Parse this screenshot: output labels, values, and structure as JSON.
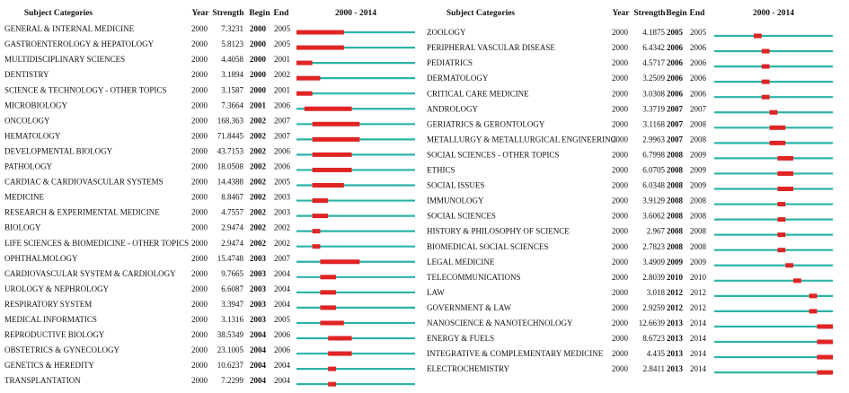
{
  "panels": [
    {
      "header": {
        "category": "Subject Categories",
        "year": "Year",
        "strength": "Strength",
        "begin": "Begin",
        "end": "End",
        "timeline": "2000 - 2014"
      },
      "xlim": [
        2000,
        2014
      ],
      "rows": [
        [
          "GENERAL & INTERNAL MEDICINE",
          2000,
          7.3231,
          2000,
          2005
        ],
        [
          "GASTROENTEROLOGY & HEPATOLOGY",
          2000,
          5.8123,
          2000,
          2005
        ],
        [
          "MULTIDISCIPLINARY SCIENCES",
          2000,
          4.4058,
          2000,
          2001
        ],
        [
          "DENTISTRY",
          2000,
          3.1894,
          2000,
          2002
        ],
        [
          "SCIENCE & TECHNOLOGY - OTHER TOPICS",
          2000,
          3.1587,
          2000,
          2001
        ],
        [
          "MICROBIOLOGY",
          2000,
          7.3664,
          2001,
          2006
        ],
        [
          "ONCOLOGY",
          2000,
          168.363,
          2002,
          2007
        ],
        [
          "HEMATOLOGY",
          2000,
          71.8445,
          2002,
          2007
        ],
        [
          "DEVELOPMENTAL BIOLOGY",
          2000,
          43.7153,
          2002,
          2006
        ],
        [
          "PATHOLOGY",
          2000,
          18.0508,
          2002,
          2006
        ],
        [
          "CARDIAC & CARDIOVASCULAR SYSTEMS",
          2000,
          14.4388,
          2002,
          2005
        ],
        [
          "MEDICINE",
          2000,
          8.8467,
          2002,
          2003
        ],
        [
          "RESEARCH & EXPERIMENTAL MEDICINE",
          2000,
          4.7557,
          2002,
          2003
        ],
        [
          "BIOLOGY",
          2000,
          2.9474,
          2002,
          2002
        ],
        [
          "LIFE SCIENCES & BIOMEDICINE - OTHER TOPICS",
          2000,
          2.9474,
          2002,
          2002
        ],
        [
          "OPHTHALMOLOGY",
          2000,
          15.4748,
          2003,
          2007
        ],
        [
          "CARDIOVASCULAR SYSTEM & CARDIOLOGY",
          2000,
          9.7665,
          2003,
          2004
        ],
        [
          "UROLOGY & NEPHROLOGY",
          2000,
          6.6087,
          2003,
          2004
        ],
        [
          "RESPIRATORY SYSTEM",
          2000,
          3.3947,
          2003,
          2004
        ],
        [
          "MEDICAL INFORMATICS",
          2000,
          3.1316,
          2003,
          2005
        ],
        [
          "REPRODUCTIVE BIOLOGY",
          2000,
          38.5349,
          2004,
          2006
        ],
        [
          "OBSTETRICS & GYNECOLOGY",
          2000,
          23.1005,
          2004,
          2006
        ],
        [
          "GENETICS & HEREDITY",
          2000,
          10.6237,
          2004,
          2004
        ],
        [
          "TRANSPLANTATION",
          2000,
          7.2299,
          2004,
          2004
        ]
      ]
    },
    {
      "header": {
        "category": "Subject Categories",
        "year": "Year",
        "strength": "Strength",
        "begin": "Begin",
        "end": "End",
        "timeline": "2000 - 2014"
      },
      "xlim": [
        2000,
        2014
      ],
      "rows": [
        [
          "ZOOLOGY",
          2000,
          4.1875,
          2005,
          2005
        ],
        [
          "PERIPHERAL VASCULAR DISEASE",
          2000,
          6.4342,
          2006,
          2006
        ],
        [
          "PEDIATRICS",
          2000,
          4.5717,
          2006,
          2006
        ],
        [
          "DERMATOLOGY",
          2000,
          3.2509,
          2006,
          2006
        ],
        [
          "CRITICAL CARE MEDICINE",
          2000,
          3.0308,
          2006,
          2006
        ],
        [
          "ANDROLOGY",
          2000,
          3.3719,
          2007,
          2007
        ],
        [
          "GERIATRICS & GERONTOLOGY",
          2000,
          3.1168,
          2007,
          2008
        ],
        [
          "METALLURGY & METALLURGICAL ENGINEERING",
          2000,
          2.9963,
          2007,
          2008
        ],
        [
          "SOCIAL SCIENCES - OTHER TOPICS",
          2000,
          6.7998,
          2008,
          2009
        ],
        [
          "ETHICS",
          2000,
          6.0705,
          2008,
          2009
        ],
        [
          "SOCIAL ISSUES",
          2000,
          6.0348,
          2008,
          2009
        ],
        [
          "IMMUNOLOGY",
          2000,
          3.9129,
          2008,
          2008
        ],
        [
          "SOCIAL SCIENCES",
          2000,
          3.6062,
          2008,
          2008
        ],
        [
          "HISTORY & PHILOSOPHY OF SCIENCE",
          2000,
          2.967,
          2008,
          2008
        ],
        [
          "BIOMEDICAL SOCIAL SCIENCES",
          2000,
          2.7823,
          2008,
          2008
        ],
        [
          "LEGAL MEDICINE",
          2000,
          3.4909,
          2009,
          2009
        ],
        [
          "TELECOMMUNICATIONS",
          2000,
          2.8039,
          2010,
          2010
        ],
        [
          "LAW",
          2000,
          3.018,
          2012,
          2012
        ],
        [
          "GOVERNMENT & LAW",
          2000,
          2.9259,
          2012,
          2012
        ],
        [
          "NANOSCIENCE & NANOTECHNOLOGY",
          2000,
          12.6639,
          2013,
          2014
        ],
        [
          "ENERGY & FUELS",
          2000,
          8.6723,
          2013,
          2014
        ],
        [
          "INTEGRATIVE & COMPLEMENTARY MEDICINE",
          2000,
          4.435,
          2013,
          2014
        ],
        [
          "ELECTROCHEMISTRY",
          2000,
          2.8411,
          2013,
          2014
        ]
      ]
    }
  ]
}
